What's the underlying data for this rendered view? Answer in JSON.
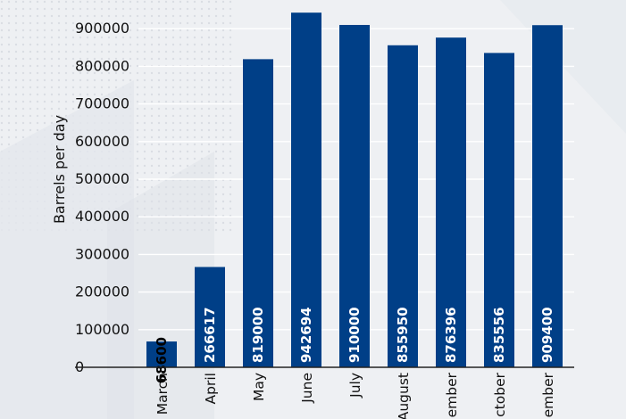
{
  "chart_data": {
    "type": "bar",
    "title": "",
    "xlabel": "",
    "ylabel": "Barrels per day",
    "categories": [
      "March",
      "April",
      "May",
      "June",
      "July",
      "August",
      "ember",
      "ctober",
      "ember"
    ],
    "values": [
      68600,
      266617,
      819000,
      942694,
      910000,
      855950,
      876396,
      835556,
      909400
    ],
    "data_labels": [
      "68600",
      "266617",
      "819000",
      "942694",
      "910000",
      "855950",
      "876396",
      "835556",
      "909400"
    ],
    "yticks": [
      "0",
      "100000",
      "200000",
      "300000",
      "400000",
      "500000",
      "600000",
      "700000",
      "800000",
      "900000"
    ],
    "ylim": [
      0,
      920000
    ],
    "grid": true,
    "legend": "none",
    "colors": {
      "bar": "#003f87",
      "grid": "#ffffff",
      "axis": "#222222",
      "label_inside": "#ffffff",
      "label_outside": "#000000"
    }
  }
}
